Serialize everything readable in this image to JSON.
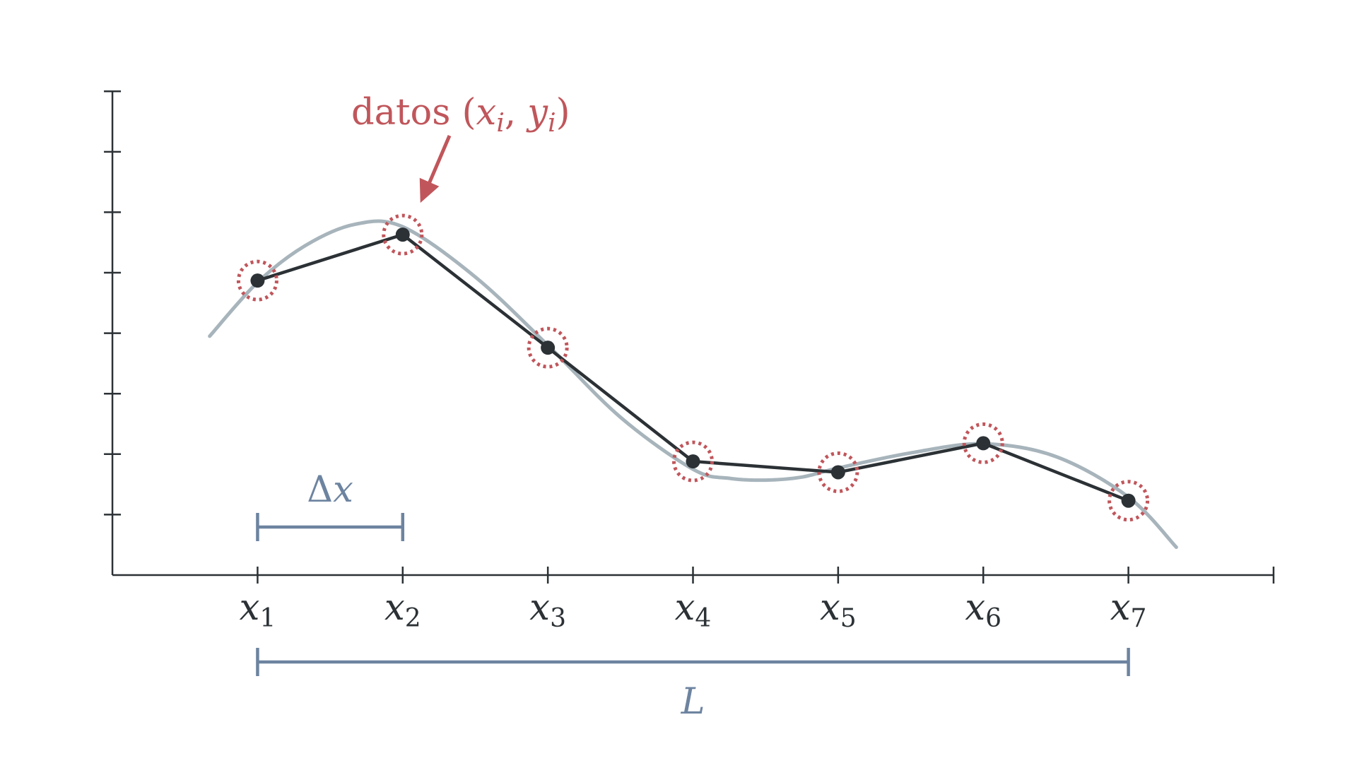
{
  "chart_data": {
    "type": "line",
    "title": "",
    "xlabel": "",
    "ylabel": "",
    "xlim": [
      0,
      8
    ],
    "ylim": [
      0,
      8
    ],
    "grid": false,
    "yticks": [
      0,
      1,
      2,
      3,
      4,
      5,
      6,
      7,
      8
    ],
    "xticks": [
      {
        "x": 1,
        "base": "x",
        "sub": "1"
      },
      {
        "x": 2,
        "base": "x",
        "sub": "2"
      },
      {
        "x": 3,
        "base": "x",
        "sub": "3"
      },
      {
        "x": 4,
        "base": "x",
        "sub": "4"
      },
      {
        "x": 5,
        "base": "x",
        "sub": "5"
      },
      {
        "x": 6,
        "base": "x",
        "sub": "6"
      },
      {
        "x": 7,
        "base": "x",
        "sub": "7"
      }
    ],
    "series": [
      {
        "type": "piecewise-linear",
        "x": [
          1,
          2,
          3,
          4,
          5,
          6,
          7
        ],
        "y": [
          4.87,
          5.63,
          3.76,
          1.88,
          1.7,
          2.18,
          1.23
        ],
        "color": "#2b3135",
        "markers": true,
        "marker_highlight": "dotted-circle"
      },
      {
        "type": "smooth-curve",
        "x": [
          0.67,
          1,
          1.33,
          1.67,
          2,
          2.5,
          3,
          3.5,
          4,
          4.25,
          4.5,
          4.75,
          5,
          5.5,
          6,
          6.5,
          7,
          7.33
        ],
        "y": [
          3.95,
          4.84,
          5.45,
          5.8,
          5.76,
          4.93,
          3.8,
          2.61,
          1.75,
          1.6,
          1.57,
          1.62,
          1.77,
          2.02,
          2.17,
          1.96,
          1.29,
          0.46
        ],
        "color": "#a7b4bb"
      }
    ],
    "annotations": {
      "data_label": {
        "text": "datos",
        "math_open": "(",
        "x_base": "x",
        "x_sub": "i",
        "sep": ",",
        "y_base": "y",
        "y_sub": "i",
        "math_close": ")",
        "points_to_x": 2,
        "color": "#c0565b"
      },
      "delta": {
        "symbol": "Δ",
        "var": "x",
        "from": 1,
        "to": 2,
        "color": "#6d84a0"
      },
      "length": {
        "var": "L",
        "from": 1,
        "to": 7,
        "color": "#6d84a0"
      }
    }
  }
}
